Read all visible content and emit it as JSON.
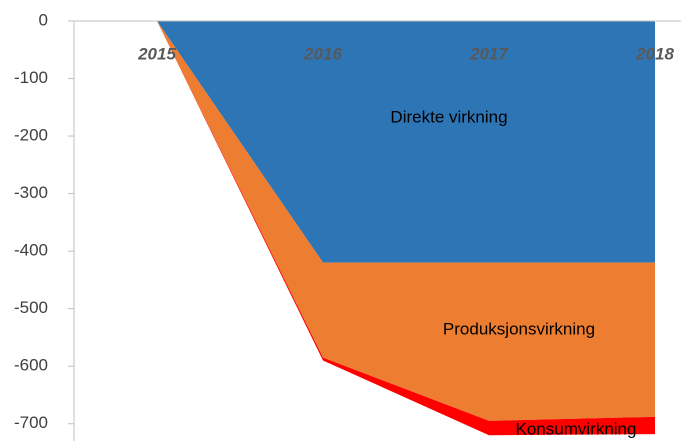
{
  "chart_data": {
    "type": "stacked_area",
    "categories": [
      "2015",
      "2016",
      "2017",
      "2018"
    ],
    "series": [
      {
        "name": "Direkte virkning",
        "color": "#2e75b6",
        "values": [
          0,
          -420,
          -420,
          -420
        ]
      },
      {
        "name": "Produksjonsvirkning",
        "color": "#ed7d31",
        "values": [
          0,
          -165,
          -275,
          -268
        ]
      },
      {
        "name": "Konsumvirkning",
        "color": "#ff0000",
        "values": [
          0,
          -5,
          -25,
          -30
        ]
      }
    ],
    "ylim": [
      -730,
      0
    ],
    "yticks": [
      0,
      -100,
      -200,
      -300,
      -400,
      -500,
      -600,
      -700
    ]
  }
}
